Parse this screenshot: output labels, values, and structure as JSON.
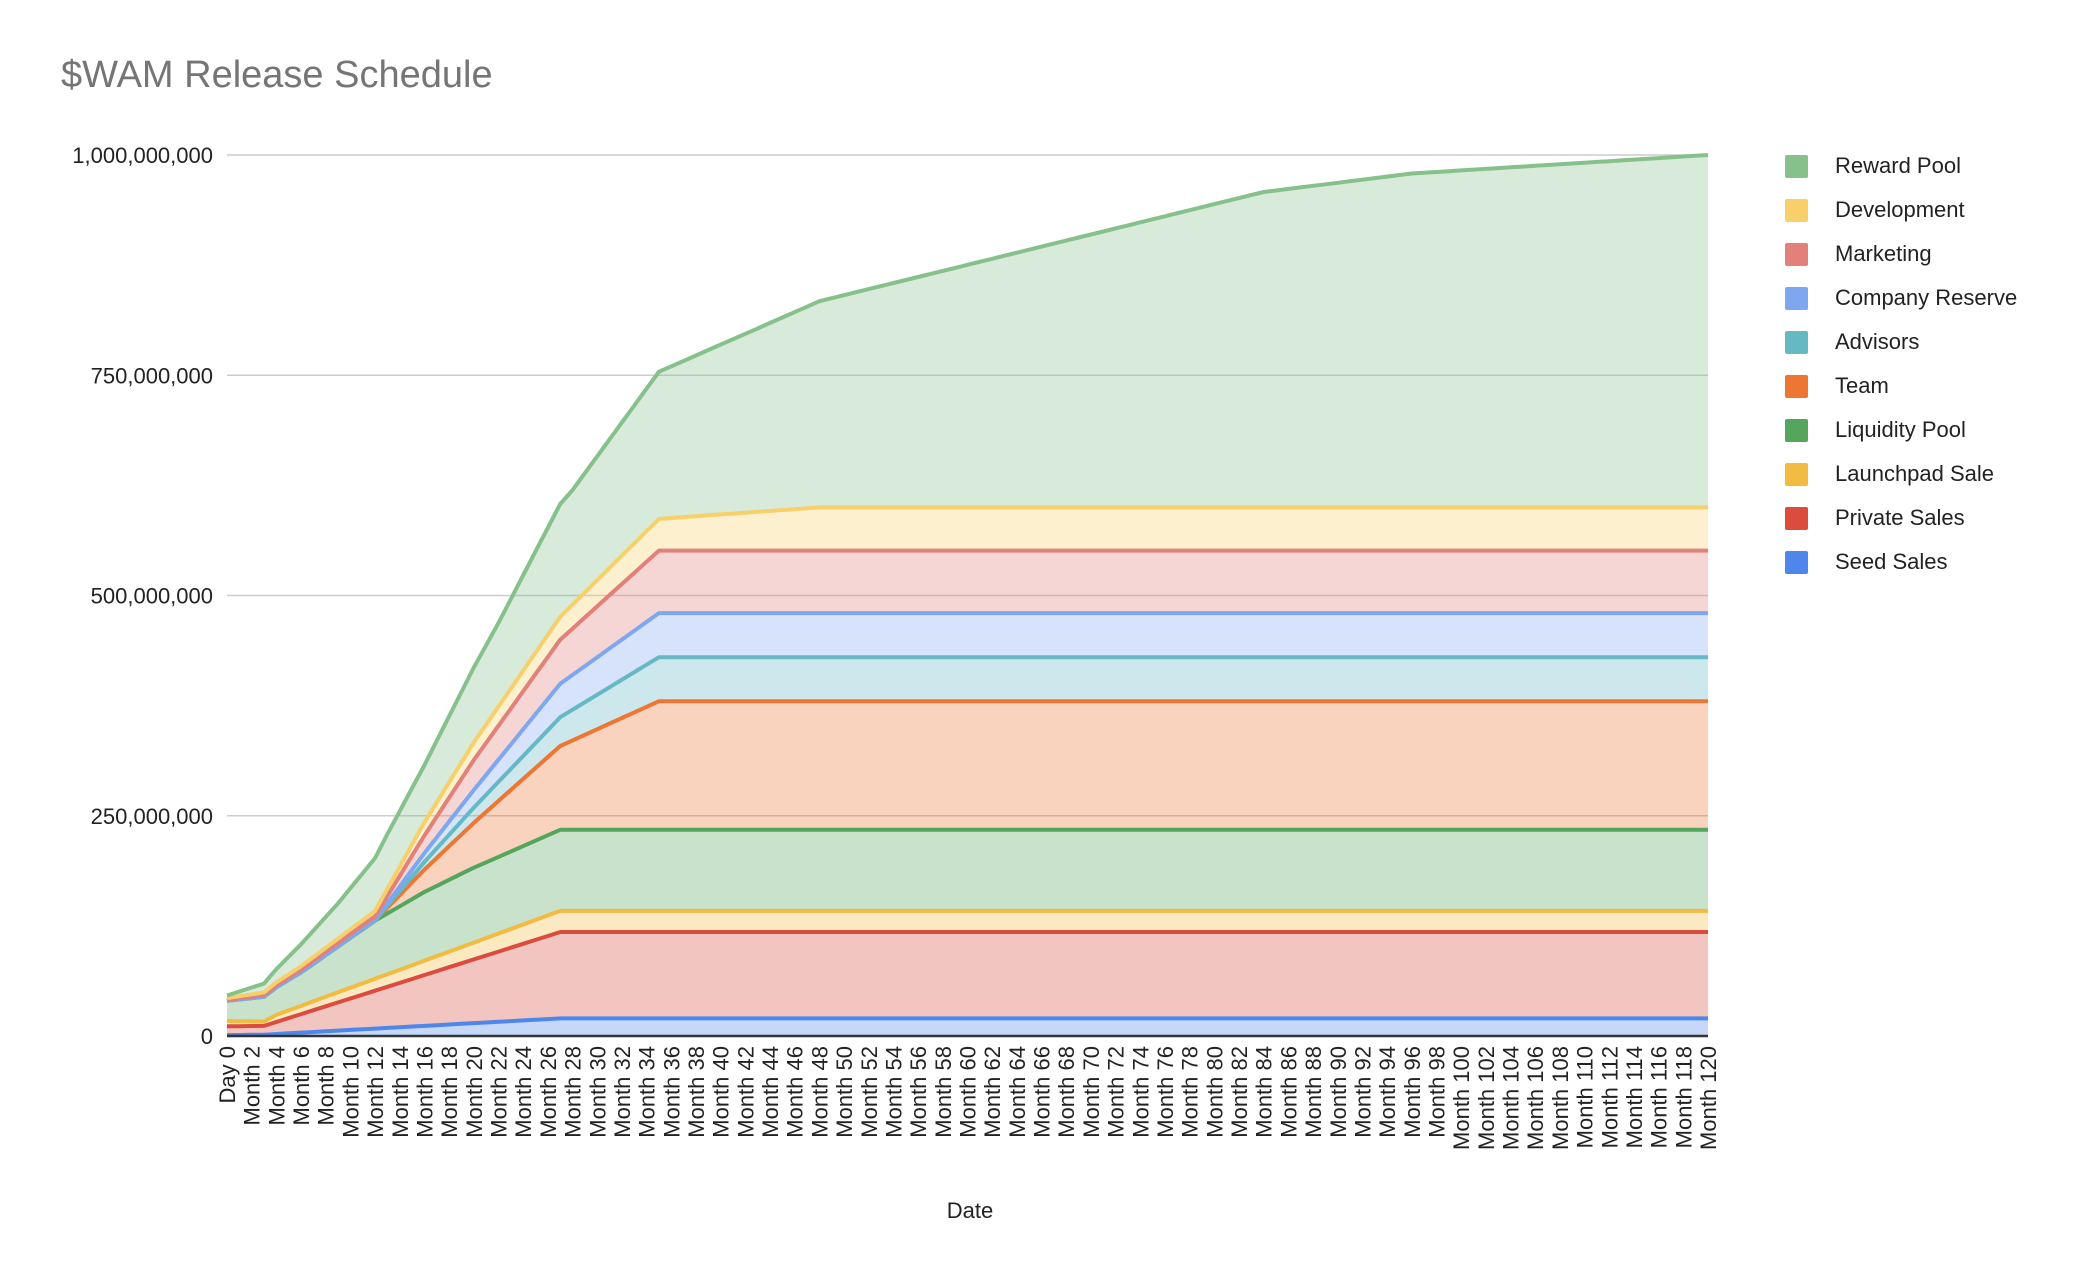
{
  "chart_data": {
    "type": "area",
    "stacked": true,
    "title": "$WAM Release Schedule",
    "xlabel": "Date",
    "ylabel": "",
    "ylim": [
      0,
      1000000000
    ],
    "yticks": [
      0,
      250000000,
      500000000,
      750000000,
      1000000000
    ],
    "ytick_labels": [
      "0",
      "250,000,000",
      "500,000,000",
      "750,000,000",
      "1,000,000,000"
    ],
    "x_first_label": "Day 0",
    "x_label_prefix": "Month ",
    "x_months": [
      0,
      120
    ],
    "x_label_every": 2,
    "grid": true,
    "legend_position": "right",
    "value_unit_note": "series keypoints are [month, cumulative tokens in millions], linearly interpolated",
    "series": [
      {
        "name": "Seed Sales",
        "color": "#4f86ec",
        "keypoints": [
          [
            0,
            1
          ],
          [
            3,
            1.5
          ],
          [
            27,
            20
          ],
          [
            120,
            20
          ]
        ]
      },
      {
        "name": "Private Sales",
        "color": "#db4c3f",
        "keypoints": [
          [
            0,
            10
          ],
          [
            3,
            10
          ],
          [
            27,
            98
          ],
          [
            120,
            98
          ]
        ]
      },
      {
        "name": "Launchpad Sale",
        "color": "#f2bb42",
        "keypoints": [
          [
            0,
            6
          ],
          [
            3,
            5
          ],
          [
            4,
            8
          ],
          [
            27,
            24
          ],
          [
            120,
            24
          ]
        ]
      },
      {
        "name": "Liquidity Pool",
        "color": "#56a55c",
        "keypoints": [
          [
            0,
            23
          ],
          [
            3,
            28
          ],
          [
            6,
            38
          ],
          [
            9,
            52
          ],
          [
            12,
            66
          ],
          [
            16,
            78
          ],
          [
            20,
            85
          ],
          [
            27,
            92
          ],
          [
            120,
            92
          ]
        ]
      },
      {
        "name": "Team",
        "color": "#ed7633",
        "keypoints": [
          [
            0,
            0
          ],
          [
            12,
            0
          ],
          [
            35,
            146
          ],
          [
            120,
            146
          ]
        ]
      },
      {
        "name": "Advisors",
        "color": "#64b9c4",
        "keypoints": [
          [
            0,
            0
          ],
          [
            12,
            0
          ],
          [
            35,
            50
          ],
          [
            120,
            50
          ]
        ]
      },
      {
        "name": "Company Reserve",
        "color": "#7fa7ef",
        "keypoints": [
          [
            0,
            0
          ],
          [
            12,
            1
          ],
          [
            16,
            10
          ],
          [
            20,
            20
          ],
          [
            27,
            38
          ],
          [
            35,
            50
          ],
          [
            120,
            50
          ]
        ]
      },
      {
        "name": "Marketing",
        "color": "#e2807a",
        "keypoints": [
          [
            0,
            1
          ],
          [
            12,
            4
          ],
          [
            16,
            20
          ],
          [
            20,
            34
          ],
          [
            27,
            50
          ],
          [
            35,
            71
          ],
          [
            120,
            71
          ]
        ]
      },
      {
        "name": "Development",
        "color": "#f7d06b",
        "keypoints": [
          [
            0,
            2
          ],
          [
            12,
            6
          ],
          [
            16,
            15
          ],
          [
            20,
            20
          ],
          [
            27,
            26
          ],
          [
            35,
            36
          ],
          [
            48,
            49
          ],
          [
            120,
            49
          ]
        ]
      },
      {
        "name": "Reward Pool",
        "color": "#86c18b",
        "keypoints": [
          [
            0,
            3
          ],
          [
            3,
            10
          ],
          [
            6,
            25
          ],
          [
            9,
            40
          ],
          [
            12,
            60
          ],
          [
            13,
            62
          ],
          [
            16,
            65
          ],
          [
            19,
            80
          ],
          [
            22,
            95
          ],
          [
            25,
            115
          ],
          [
            27,
            128
          ],
          [
            28,
            130
          ],
          [
            35,
            167
          ],
          [
            48,
            234
          ],
          [
            84,
            358
          ],
          [
            96,
            379
          ],
          [
            120,
            400
          ]
        ]
      }
    ]
  }
}
